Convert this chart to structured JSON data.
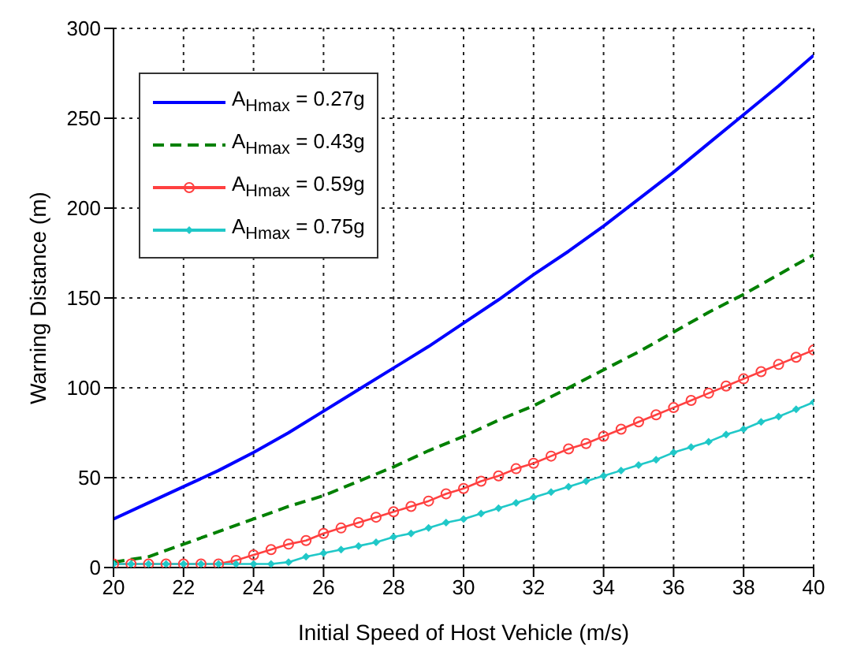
{
  "chart_data": {
    "type": "line",
    "xlabel": "Initial Speed of Host Vehicle (m/s)",
    "ylabel": "Warning Distance (m)",
    "xlim": [
      20,
      40
    ],
    "ylim": [
      0,
      300
    ],
    "xticks": [
      20,
      22,
      24,
      26,
      28,
      30,
      32,
      34,
      36,
      38,
      40
    ],
    "yticks": [
      0,
      50,
      100,
      150,
      200,
      250,
      300
    ],
    "grid": true,
    "legend": "top left",
    "series": [
      {
        "name": "A$_{Hmax}$ = 0.27g",
        "color": "#0000ff",
        "line_style": "solid",
        "marker": "none",
        "x": [
          20,
          21,
          22,
          23,
          24,
          25,
          26,
          27,
          28,
          29,
          30,
          31,
          32,
          33,
          34,
          35,
          36,
          37,
          38,
          39,
          40
        ],
        "values": [
          27,
          36,
          45,
          54,
          64,
          75,
          87,
          99,
          111,
          123,
          136,
          149,
          163,
          176,
          190,
          205,
          220,
          236,
          252,
          268,
          285
        ]
      },
      {
        "name": "A$_{Hmax}$ = 0.43g",
        "color": "#008000",
        "line_style": "dashed",
        "marker": "none",
        "x": [
          20,
          21,
          22,
          23,
          24,
          25,
          26,
          27,
          28,
          29,
          30,
          31,
          32,
          33,
          34,
          35,
          36,
          37,
          38,
          39,
          40
        ],
        "values": [
          3,
          6,
          13,
          20,
          27,
          34,
          40,
          48,
          56,
          65,
          73,
          82,
          90,
          100,
          110,
          120,
          131,
          142,
          152,
          163,
          174
        ]
      },
      {
        "name": "A$_{Hmax}$ = 0.59g",
        "color": "#ff4040",
        "line_style": "solid",
        "marker": "circle",
        "x": [
          20,
          20.5,
          21,
          21.5,
          22,
          22.5,
          23,
          23.5,
          24,
          24.5,
          25,
          25.5,
          26,
          26.5,
          27,
          27.5,
          28,
          28.5,
          29,
          29.5,
          30,
          30.5,
          31,
          31.5,
          32,
          32.5,
          33,
          33.5,
          34,
          34.5,
          35,
          35.5,
          36,
          36.5,
          37,
          37.5,
          38,
          38.5,
          39,
          39.5,
          40
        ],
        "values": [
          2,
          2,
          2,
          2,
          2,
          2,
          2,
          4,
          7,
          10,
          13,
          15,
          19,
          22,
          25,
          28,
          31,
          34,
          37,
          41,
          44,
          48,
          51,
          55,
          58,
          62,
          66,
          69,
          73,
          77,
          81,
          85,
          89,
          93,
          97,
          101,
          105,
          109,
          113,
          117,
          121
        ]
      },
      {
        "name": "A$_{Hmax}$ = 0.75g",
        "color": "#20c8c8",
        "line_style": "solid",
        "marker": "diamond",
        "x": [
          20,
          20.5,
          21,
          21.5,
          22,
          22.5,
          23,
          23.5,
          24,
          24.5,
          25,
          25.5,
          26,
          26.5,
          27,
          27.5,
          28,
          28.5,
          29,
          29.5,
          30,
          30.5,
          31,
          31.5,
          32,
          32.5,
          33,
          33.5,
          34,
          34.5,
          35,
          35.5,
          36,
          36.5,
          37,
          37.5,
          38,
          38.5,
          39,
          39.5,
          40
        ],
        "values": [
          2,
          2,
          2,
          2,
          2,
          2,
          2,
          2,
          2,
          2,
          3,
          6,
          8,
          10,
          12,
          14,
          17,
          19,
          22,
          25,
          27,
          30,
          33,
          36,
          39,
          42,
          45,
          48,
          51,
          54,
          57,
          60,
          64,
          67,
          70,
          74,
          77,
          81,
          84,
          88,
          92
        ]
      }
    ]
  }
}
